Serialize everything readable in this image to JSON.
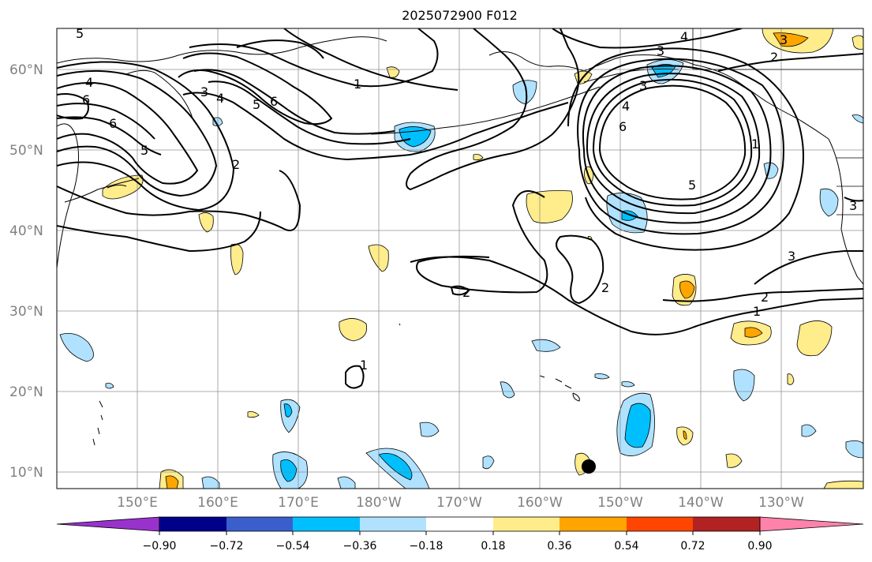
{
  "title": "2025072900 F012",
  "map": {
    "lat_labels": [
      "60°N",
      "50°N",
      "40°N",
      "30°N",
      "20°N",
      "10°N"
    ],
    "lon_labels": [
      "150°E",
      "160°E",
      "170°E",
      "180°W",
      "170°W",
      "160°W",
      "150°W",
      "140°W",
      "130°W"
    ],
    "gridline_color": "#808080"
  },
  "colorbar": {
    "ticks": [
      "−0.90",
      "−0.72",
      "−0.54",
      "−0.36",
      "−0.18",
      "0.18",
      "0.36",
      "0.54",
      "0.72",
      "0.90"
    ],
    "colors": [
      "#9932cc",
      "#00008b",
      "#3a5fcd",
      "#00bfff",
      "#b0e2ff",
      "#ffffff",
      "#ffec8b",
      "#ffa500",
      "#ff4500",
      "#b22222",
      "#ff82ab"
    ]
  },
  "contour_labels": [
    "1",
    "2",
    "3",
    "4",
    "5",
    "6"
  ],
  "marker": "station-dot"
}
